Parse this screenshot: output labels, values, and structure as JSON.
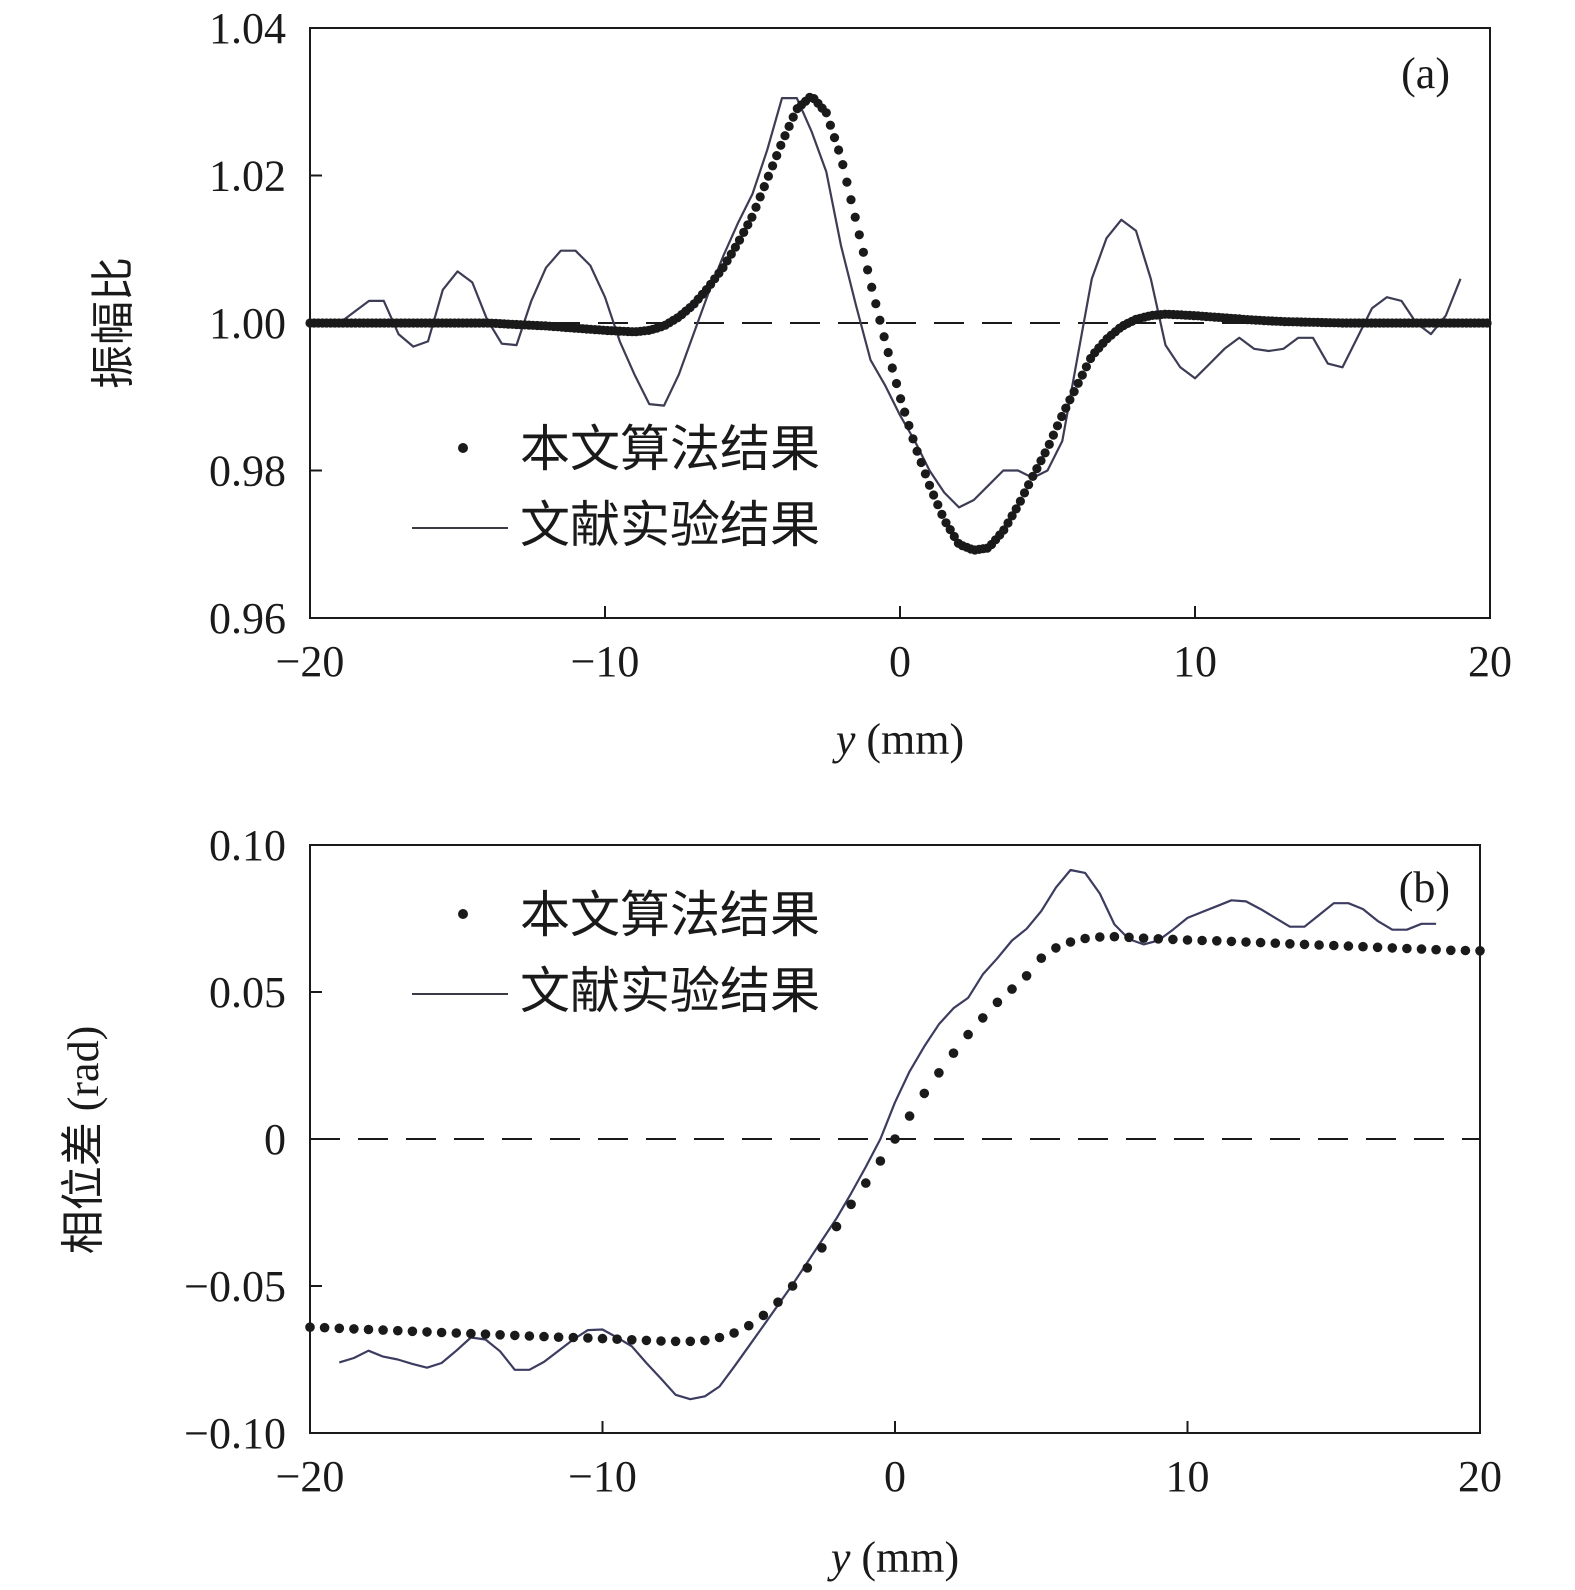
{
  "chart_data": [
    {
      "type": "line",
      "panel_label": "(a)",
      "ylabel": "振幅比",
      "xlabel_italic": "y",
      "xlabel_unit": " (mm)",
      "xlim": [
        -20,
        20
      ],
      "ylim": [
        0.96,
        1.04
      ],
      "x_ticks": [
        -20,
        -10,
        0,
        10,
        20
      ],
      "x_tick_labels": [
        "−20",
        "−10",
        "0",
        "10",
        "20"
      ],
      "y_ticks": [
        0.96,
        0.98,
        1.0,
        1.02,
        1.04
      ],
      "y_tick_labels": [
        "0.96",
        "0.98",
        "1.00",
        "1.02",
        "1.04"
      ],
      "reference_line": 1.0,
      "legend_placement": "center-left",
      "series": [
        {
          "name": "本文算法结果",
          "style": "dots",
          "x": [
            -20,
            -19,
            -18,
            -17,
            -16,
            -15,
            -14,
            -13,
            -12,
            -11,
            -10,
            -9,
            -8.5,
            -8,
            -7.5,
            -7,
            -6.5,
            -6,
            -5.5,
            -5,
            -4.5,
            -4,
            -3.5,
            -3,
            -2.5,
            -2,
            -1.5,
            -1,
            -0.5,
            0,
            0.5,
            1,
            1.5,
            2,
            2.5,
            3,
            3.5,
            4,
            4.5,
            5,
            5.5,
            6,
            6.5,
            7,
            7.5,
            8,
            8.5,
            9,
            10,
            11,
            12,
            13,
            14,
            15,
            16,
            17,
            18,
            19,
            20
          ],
          "y": [
            1.0,
            1.0,
            1.0,
            1.0,
            1.0,
            1.0,
            1.0,
            0.9998,
            0.9996,
            0.9993,
            0.999,
            0.9988,
            0.999,
            0.9996,
            1.0008,
            1.0025,
            1.0048,
            1.0075,
            1.0108,
            1.0145,
            1.0195,
            1.0245,
            1.029,
            1.0308,
            1.0285,
            1.0225,
            1.014,
            1.0055,
            0.9975,
            0.99,
            0.9835,
            0.978,
            0.9733,
            0.97,
            0.9692,
            0.9695,
            0.9718,
            0.9752,
            0.9792,
            0.983,
            0.9875,
            0.9915,
            0.9955,
            0.9978,
            0.9995,
            1.0005,
            1.001,
            1.0012,
            1.001,
            1.0007,
            1.0004,
            1.0002,
            1.0001,
            1.0,
            1.0,
            1.0,
            1.0,
            1.0,
            1.0
          ]
        },
        {
          "name": "文献实验结果",
          "style": "line",
          "x": [
            -19,
            -18.5,
            -18,
            -17.5,
            -17,
            -16.5,
            -16,
            -15.5,
            -15,
            -14.5,
            -14,
            -13.5,
            -13,
            -12.5,
            -12,
            -11.5,
            -11,
            -10.5,
            -10,
            -9.5,
            -9,
            -8.5,
            -8,
            -7.5,
            -7,
            -6.5,
            -6,
            -5.5,
            -5,
            -4.5,
            -4,
            -3.5,
            -3,
            -2.5,
            -2,
            -1.5,
            -1,
            -0.5,
            0,
            0.5,
            1,
            1.5,
            2,
            2.5,
            3,
            3.5,
            4,
            4.5,
            5,
            5.5,
            6,
            6.5,
            7,
            7.5,
            8,
            8.5,
            9,
            9.5,
            10,
            10.5,
            11,
            11.5,
            12,
            12.5,
            13,
            13.5,
            14,
            14.5,
            15,
            15.5,
            16,
            16.5,
            17,
            17.5,
            18,
            18.5,
            19
          ],
          "y": [
            1.0,
            1.0015,
            1.003,
            1.003,
            0.9985,
            0.9968,
            0.9975,
            1.0045,
            1.007,
            1.0055,
            1.0005,
            0.9972,
            0.997,
            1.003,
            1.0075,
            1.0098,
            1.0098,
            1.0078,
            1.0035,
            0.9975,
            0.993,
            0.989,
            0.9888,
            0.993,
            0.9985,
            1.004,
            1.009,
            1.0135,
            1.0175,
            1.0235,
            1.0305,
            1.0305,
            1.026,
            1.0205,
            1.0105,
            1.0025,
            0.995,
            0.9915,
            0.9875,
            0.984,
            0.98,
            0.977,
            0.975,
            0.976,
            0.978,
            0.98,
            0.98,
            0.979,
            0.98,
            0.984,
            0.995,
            1.006,
            1.0115,
            1.014,
            1.0125,
            1.006,
            0.997,
            0.994,
            0.9925,
            0.9945,
            0.9965,
            0.998,
            0.9965,
            0.9962,
            0.9965,
            0.998,
            0.998,
            0.9945,
            0.994,
            0.998,
            1.002,
            1.0035,
            1.003,
            1.0,
            0.9985,
            1.001,
            1.006
          ]
        }
      ]
    },
    {
      "type": "line",
      "panel_label": "(b)",
      "ylabel": "相位差 (rad)",
      "xlabel_italic": "y",
      "xlabel_unit": " (mm)",
      "xlim": [
        -20,
        20
      ],
      "ylim": [
        -0.1,
        0.1
      ],
      "x_ticks": [
        -20,
        -10,
        0,
        10,
        20
      ],
      "x_tick_labels": [
        "−20",
        "−10",
        "0",
        "10",
        "20"
      ],
      "y_ticks": [
        -0.1,
        -0.05,
        0,
        0.05,
        0.1
      ],
      "y_tick_labels": [
        "−0.10",
        "−0.05",
        "0",
        "0.05",
        "0.10"
      ],
      "reference_line": 0,
      "legend_placement": "top-left",
      "series": [
        {
          "name": "本文算法结果",
          "style": "dots",
          "x": [
            -20,
            -19.5,
            -19,
            -18.5,
            -18,
            -17.5,
            -17,
            -16.5,
            -16,
            -15.5,
            -15,
            -14.5,
            -14,
            -13.5,
            -13,
            -12.5,
            -12,
            -11.5,
            -11,
            -10.5,
            -10,
            -9.5,
            -9,
            -8.5,
            -8,
            -7.5,
            -7,
            -6.5,
            -6,
            -5.5,
            -5,
            -4.5,
            -4,
            -3.5,
            -3,
            -2.5,
            -2,
            -1.5,
            -1,
            -0.5,
            0,
            0.5,
            1,
            1.5,
            2,
            2.5,
            3,
            3.5,
            4,
            4.5,
            5,
            5.5,
            6,
            6.5,
            7,
            7.5,
            8,
            8.5,
            9,
            9.5,
            10,
            10.5,
            11,
            11.5,
            12,
            12.5,
            13,
            13.5,
            14,
            14.5,
            15,
            15.5,
            16,
            16.5,
            17,
            17.5,
            18,
            18.5,
            19,
            19.5,
            20
          ],
          "y": [
            -0.064,
            -0.0642,
            -0.0644,
            -0.0646,
            -0.0648,
            -0.065,
            -0.0652,
            -0.0654,
            -0.0656,
            -0.0658,
            -0.066,
            -0.0662,
            -0.0664,
            -0.0666,
            -0.0668,
            -0.067,
            -0.0672,
            -0.0674,
            -0.0675,
            -0.0677,
            -0.0679,
            -0.0681,
            -0.0683,
            -0.0685,
            -0.0687,
            -0.0688,
            -0.0688,
            -0.0685,
            -0.0675,
            -0.066,
            -0.0635,
            -0.06,
            -0.0555,
            -0.05,
            -0.0438,
            -0.037,
            -0.0298,
            -0.0222,
            -0.015,
            -0.0075,
            0.0,
            0.0078,
            0.0155,
            0.0225,
            0.0292,
            0.0355,
            0.0412,
            0.0465,
            0.051,
            0.0555,
            0.0615,
            0.065,
            0.067,
            0.0682,
            0.0687,
            0.0688,
            0.0686,
            0.0683,
            0.0681,
            0.0679,
            0.0677,
            0.0675,
            0.0674,
            0.0672,
            0.067,
            0.0668,
            0.0666,
            0.0664,
            0.0662,
            0.066,
            0.0658,
            0.0656,
            0.0654,
            0.0652,
            0.065,
            0.0648,
            0.0646,
            0.0644,
            0.0642,
            0.0641,
            0.064
          ]
        },
        {
          "name": "文献实验结果",
          "style": "line",
          "x": [
            -19,
            -18.5,
            -18,
            -17.5,
            -17,
            -16.5,
            -16,
            -15.5,
            -15,
            -14.5,
            -14,
            -13.5,
            -13,
            -12.5,
            -12,
            -11.5,
            -11,
            -10.5,
            -10,
            -9.5,
            -9,
            -8.5,
            -8,
            -7.5,
            -7,
            -6.5,
            -6,
            -5.5,
            -5,
            -4.5,
            -4,
            -3.5,
            -3,
            -2.5,
            -2,
            -1.5,
            -1,
            -0.5,
            0,
            0.5,
            1,
            1.5,
            2,
            2.5,
            3,
            3.5,
            4,
            4.5,
            5,
            5.5,
            6,
            6.5,
            7,
            7.5,
            8,
            8.5,
            9,
            9.5,
            10,
            10.5,
            11,
            11.5,
            12,
            12.5,
            13,
            13.5,
            14,
            14.5,
            15,
            15.5,
            16,
            16.5,
            17,
            17.5,
            18,
            18.5
          ],
          "y": [
            -0.076,
            -0.0745,
            -0.072,
            -0.074,
            -0.075,
            -0.0765,
            -0.0778,
            -0.0762,
            -0.072,
            -0.0675,
            -0.0682,
            -0.0722,
            -0.0785,
            -0.0785,
            -0.0758,
            -0.072,
            -0.0682,
            -0.065,
            -0.0648,
            -0.0675,
            -0.0705,
            -0.0762,
            -0.0815,
            -0.087,
            -0.0885,
            -0.0875,
            -0.0842,
            -0.0775,
            -0.0705,
            -0.0635,
            -0.0565,
            -0.0495,
            -0.042,
            -0.0345,
            -0.027,
            -0.0185,
            -0.0095,
            0.0,
            0.0125,
            0.023,
            0.0315,
            0.039,
            0.0445,
            0.048,
            0.056,
            0.0615,
            0.0675,
            0.0715,
            0.0775,
            0.0855,
            0.0915,
            0.0905,
            0.0835,
            0.073,
            0.068,
            0.0662,
            0.0675,
            0.0712,
            0.0752,
            0.0772,
            0.0792,
            0.0812,
            0.0808,
            0.0782,
            0.0752,
            0.0722,
            0.0722,
            0.0762,
            0.0802,
            0.0802,
            0.0782,
            0.0742,
            0.0712,
            0.0712,
            0.0732,
            0.0732
          ]
        }
      ]
    }
  ]
}
